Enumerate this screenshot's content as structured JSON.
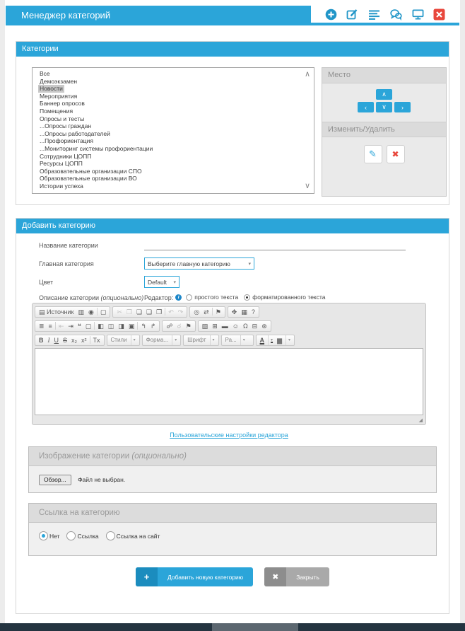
{
  "header": {
    "title": "Менеджер категорий",
    "icons": [
      "add-icon",
      "edit-icon",
      "list-icon",
      "chat-icon",
      "monitor-icon",
      "close-icon"
    ]
  },
  "colors": {
    "accent": "#2BA5D9",
    "accent_dark": "#1B8CBE",
    "danger": "#E8473C"
  },
  "glyphs": {
    "scroll_up": "∧",
    "scroll_down": "∨",
    "caret": "▾",
    "info": "i",
    "resize": "◢",
    "plus": "+",
    "close_x": "✖"
  },
  "categories": {
    "section_title": "Категории",
    "items": [
      "Все",
      "Демоэкзамен",
      "Новости",
      "Мероприятия",
      "Баннер опросов",
      "Помещения",
      "Опросы и тесты",
      "...Опросы граждан",
      "...Опросы работодателей",
      "...Профориентация",
      "...Мониторинг системы профориентации",
      "Сотрудники ЦОПП",
      "Ресурсы ЦОПП",
      "Образовательные организации СПО",
      "Образовательные организации ВО",
      "Истории успеха"
    ],
    "selected": "Новости",
    "place": {
      "title": "Место",
      "up": "∧",
      "left": "‹",
      "down": "∨",
      "right": "›"
    },
    "edit": {
      "title": "Изменить/Удалить",
      "edit_glyph": "✎",
      "delete_glyph": "✖"
    }
  },
  "add_category": {
    "section_title": "Добавить категорию",
    "name_label": "Название категории",
    "parent_label": "Главная категория",
    "parent_value": "Выберите главную категорию",
    "color_label": "Цвет",
    "color_value": "Default",
    "description_label": "Описание категории ",
    "description_suffix": "(опционально)",
    "editor_mode": {
      "label": "Редактор:",
      "options": [
        {
          "label": "простого текста",
          "checked": false
        },
        {
          "label": "форматированного текста",
          "checked": true
        }
      ]
    },
    "editor": {
      "settings_link": "Пользовательские настройки редактора",
      "toolbar_rows": [
        [
          [
            {
              "n": "source-button",
              "g": "▤",
              "l": "Источник"
            },
            {
              "n": "preview-icon",
              "g": "▥"
            },
            {
              "n": "print-icon",
              "g": "◉"
            },
            {
              "n": "templates-icon",
              "g": "▢",
              "sep": true
            }
          ],
          [
            {
              "n": "cut-icon",
              "g": "✂",
              "d": true
            },
            {
              "n": "copy-icon",
              "g": "❐",
              "d": true
            },
            {
              "n": "paste-icon",
              "g": "❏"
            },
            {
              "n": "paste-text-icon",
              "g": "❑"
            },
            {
              "n": "paste-word-icon",
              "g": "❒"
            },
            {
              "n": "undo-icon",
              "g": "↶",
              "d": true,
              "sep": true
            },
            {
              "n": "redo-icon",
              "g": "↷",
              "d": true
            }
          ],
          [
            {
              "n": "find-icon",
              "g": "◎"
            },
            {
              "n": "replace-icon",
              "g": "⇄"
            },
            {
              "n": "select-all-icon",
              "g": "⚑",
              "sep": true
            }
          ],
          [
            {
              "n": "maximize-icon",
              "g": "✥"
            },
            {
              "n": "show-blocks-icon",
              "g": "▦"
            },
            {
              "n": "about-icon",
              "g": "?"
            }
          ]
        ],
        [
          [
            {
              "n": "numbered-list-icon",
              "g": "≣"
            },
            {
              "n": "bulleted-list-icon",
              "g": "≡"
            },
            {
              "n": "outdent-icon",
              "g": "⇤",
              "d": true,
              "sep": true
            },
            {
              "n": "indent-icon",
              "g": "⇥"
            },
            {
              "n": "blockquote-icon",
              "g": "❝"
            },
            {
              "n": "div-container-icon",
              "g": "▢"
            },
            {
              "n": "align-left-icon",
              "g": "◧",
              "sep": true
            },
            {
              "n": "align-center-icon",
              "g": "◫"
            },
            {
              "n": "align-right-icon",
              "g": "◨"
            },
            {
              "n": "justify-icon",
              "g": "▣"
            },
            {
              "n": "bidi-ltr-icon",
              "g": "↰",
              "sep": true
            },
            {
              "n": "bidi-rtl-icon",
              "g": "↱"
            }
          ],
          [
            {
              "n": "link-icon",
              "g": "☍"
            },
            {
              "n": "unlink-icon",
              "g": "☌",
              "d": true
            },
            {
              "n": "anchor-icon",
              "g": "⚑"
            }
          ],
          [
            {
              "n": "image-icon",
              "g": "▧"
            },
            {
              "n": "table-icon",
              "g": "⊞"
            },
            {
              "n": "horizontal-rule-icon",
              "g": "▬"
            },
            {
              "n": "smiley-icon",
              "g": "☺"
            },
            {
              "n": "special-char-icon",
              "g": "Ω"
            },
            {
              "n": "page-break-icon",
              "g": "⊟"
            },
            {
              "n": "iframe-icon",
              "g": "⊛"
            }
          ]
        ],
        [
          [
            {
              "n": "bold-button",
              "g": "B",
              "c": "fw"
            },
            {
              "n": "italic-button",
              "g": "I",
              "c": "it"
            },
            {
              "n": "underline-button",
              "g": "U",
              "c": "un"
            },
            {
              "n": "strike-button",
              "g": "S",
              "c": "st"
            },
            {
              "n": "subscript-button",
              "g": "x₂"
            },
            {
              "n": "superscript-button",
              "g": "x²"
            },
            {
              "n": "remove-format-button",
              "g": "Tx",
              "sep": true
            }
          ],
          [
            {
              "n": "styles-dropdown",
              "t": "dd",
              "l": "Стили"
            }
          ],
          [
            {
              "n": "format-dropdown",
              "t": "dd",
              "l": "Форма..."
            }
          ],
          [
            {
              "n": "font-dropdown",
              "t": "dd",
              "l": "Шрифт"
            }
          ],
          [
            {
              "n": "size-dropdown",
              "t": "dd",
              "l": "Ра..."
            }
          ],
          [
            {
              "n": "text-color-button",
              "t": "color",
              "l": "A",
              "c": "ca"
            },
            {
              "n": "bg-color-button",
              "t": "color",
              "l": "▆",
              "c": "cb"
            }
          ]
        ]
      ]
    },
    "image": {
      "title": "Изображение категории ",
      "title_suffix": "(опционально)",
      "browse": "Обзор...",
      "no_file": "Файл не выбран."
    },
    "link": {
      "title": "Ссылка на категорию",
      "options": [
        {
          "label": "Нет",
          "checked": true
        },
        {
          "label": "Ссылка",
          "checked": false
        },
        {
          "label": "Ссылка на сайт",
          "checked": false
        }
      ]
    },
    "submit_button": "Добавить новую категорию",
    "close_button": "Закрыть"
  }
}
